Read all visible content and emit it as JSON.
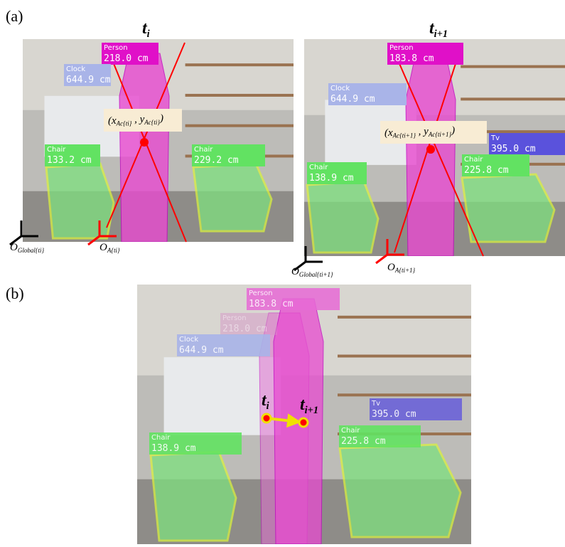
{
  "panel_a": {
    "label": "(a)",
    "frames": [
      {
        "title": {
          "main": "t",
          "sub": "i"
        },
        "detections": [
          {
            "class": "Person",
            "distance": "218.0 cm",
            "color": "#e010c8"
          },
          {
            "class": "Clock",
            "distance": "644.9 cm",
            "color": "#a9b4e8"
          },
          {
            "class": "Chair",
            "distance": "133.2 cm",
            "color": "#62e262"
          },
          {
            "class": "Chair",
            "distance": "229.2 cm",
            "color": "#62e262"
          }
        ],
        "anchor_point": [
          {
            "text": "(x"
          },
          {
            "sub": "Ac{ti}"
          },
          {
            "text": " , y"
          },
          {
            "sub": "Ac{ti}"
          },
          {
            "text": ")"
          }
        ],
        "global_origin": {
          "main": "O",
          "sub": "Global{ti}"
        },
        "local_origin": {
          "main": "O",
          "sub": "A{ti}"
        }
      },
      {
        "title": {
          "main": "t",
          "sub": "i+1"
        },
        "detections": [
          {
            "class": "Person",
            "distance": "183.8 cm",
            "color": "#e010c8"
          },
          {
            "class": "Clock",
            "distance": "644.9 cm",
            "color": "#a9b4e8"
          },
          {
            "class": "Tv",
            "distance": "395.0 cm",
            "color": "#5a52dc"
          },
          {
            "class": "Chair",
            "distance": "138.9 cm",
            "color": "#62e262"
          },
          {
            "class": "Chair",
            "distance": "225.8 cm",
            "color": "#62e262"
          }
        ],
        "anchor_point": [
          {
            "text": "(x"
          },
          {
            "sub": "Ac{ti+1}"
          },
          {
            "text": " , y"
          },
          {
            "sub": "Ac{ti+1}"
          },
          {
            "text": ")"
          }
        ],
        "global_origin": {
          "main": "O",
          "sub": "Global{ti+1}"
        },
        "local_origin": {
          "main": "O",
          "sub": "A{ti+1}"
        }
      }
    ]
  },
  "panel_b": {
    "label": "(b)",
    "detections": [
      {
        "class": "Person",
        "distance": "183.8 cm",
        "color": "#e86ad6"
      },
      {
        "class": "Person",
        "distance": "218.0 cm",
        "color": "#d890c8"
      },
      {
        "class": "Clock",
        "distance": "644.9 cm",
        "color": "#a9b4e8"
      },
      {
        "class": "Tv",
        "distance": "395.0 cm",
        "color": "#6a62d8"
      },
      {
        "class": "Chair",
        "distance": "138.9 cm",
        "color": "#62e262"
      },
      {
        "class": "Chair",
        "distance": "225.8 cm",
        "color": "#62e262"
      }
    ],
    "trajectory": [
      {
        "main": "t",
        "sub": "i"
      },
      {
        "main": "t",
        "sub": "i+1"
      }
    ]
  }
}
